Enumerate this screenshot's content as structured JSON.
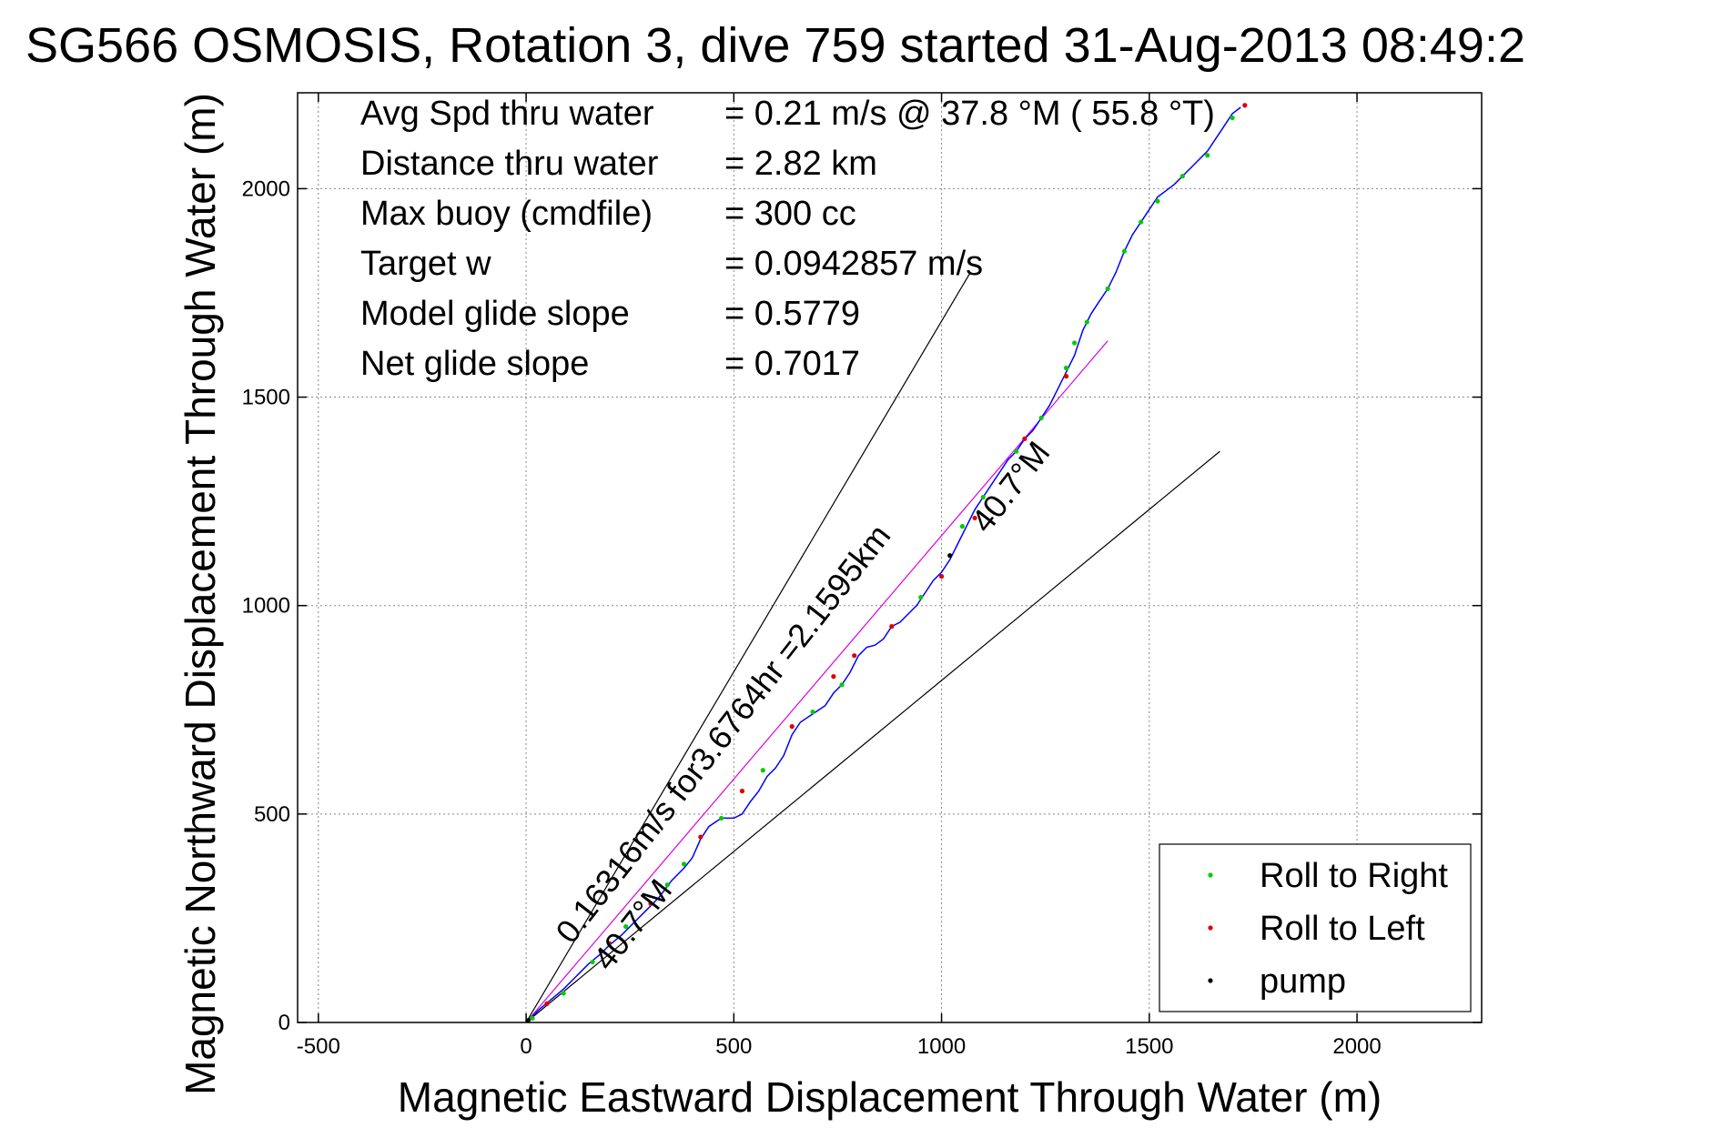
{
  "chart_data": {
    "type": "line",
    "title": "SG566 OSMOSIS, Rotation 3, dive 759 started 31-Aug-2013 08:49:2",
    "xlabel": "Magnetic Eastward Displacement Through Water (m)",
    "ylabel": "Magnetic Northward Displacement Through Water (m)",
    "xlim": [
      -550,
      2300
    ],
    "ylim": [
      0,
      2230
    ],
    "xticks": [
      -500,
      0,
      500,
      1000,
      1500,
      2000
    ],
    "yticks": [
      0,
      500,
      1000,
      1500,
      2000
    ],
    "grid": true,
    "legend_position": "bottom-right",
    "info_lines": [
      {
        "label": "Avg Spd thru water",
        "value": "=  0.21 m/s @  37.8 °M ( 55.8 °T)"
      },
      {
        "label": "Distance thru water",
        "value": "=  2.82 km"
      },
      {
        "label": "Max buoy (cmdfile)",
        "value": "= 300 cc"
      },
      {
        "label": "Target w",
        "value": "= 0.0942857 m/s"
      },
      {
        "label": "Model glide slope",
        "value": "= 0.5779"
      },
      {
        "label": "Net glide slope",
        "value": "= 0.7017"
      }
    ],
    "annotations": [
      {
        "text": "0.16316m/s for3.6764hr =2.1595km",
        "x": 110,
        "y": 185,
        "angle_deg": 52
      },
      {
        "text": "40.7°M",
        "x": 1110,
        "y": 1170,
        "angle_deg": 52
      },
      {
        "text": "40.7°M",
        "x": 200,
        "y": 120,
        "angle_deg": 52
      }
    ],
    "reference_lines": [
      {
        "name": "cone-upper",
        "color": "#000000",
        "points": [
          [
            0,
            0
          ],
          [
            1070,
            1800
          ]
        ]
      },
      {
        "name": "cone-lower",
        "color": "#000000",
        "points": [
          [
            0,
            0
          ],
          [
            1670,
            1370
          ]
        ]
      },
      {
        "name": "mean-track",
        "color": "#dd00dd",
        "points": [
          [
            0,
            0
          ],
          [
            1400,
            1635
          ]
        ]
      }
    ],
    "series": [
      {
        "type": "line",
        "color": "#0000ff",
        "points": [
          [
            0,
            0
          ],
          [
            30,
            30
          ],
          [
            60,
            55
          ],
          [
            90,
            80
          ],
          [
            120,
            110
          ],
          [
            150,
            140
          ],
          [
            180,
            165
          ],
          [
            200,
            185
          ],
          [
            230,
            210
          ],
          [
            260,
            240
          ],
          [
            290,
            270
          ],
          [
            320,
            300
          ],
          [
            350,
            340
          ],
          [
            380,
            370
          ],
          [
            400,
            395
          ],
          [
            420,
            440
          ],
          [
            440,
            470
          ],
          [
            470,
            490
          ],
          [
            500,
            490
          ],
          [
            520,
            500
          ],
          [
            540,
            530
          ],
          [
            560,
            555
          ],
          [
            580,
            590
          ],
          [
            600,
            610
          ],
          [
            620,
            640
          ],
          [
            640,
            690
          ],
          [
            660,
            720
          ],
          [
            690,
            740
          ],
          [
            720,
            760
          ],
          [
            740,
            790
          ],
          [
            760,
            810
          ],
          [
            780,
            840
          ],
          [
            800,
            880
          ],
          [
            820,
            900
          ],
          [
            840,
            905
          ],
          [
            860,
            920
          ],
          [
            880,
            950
          ],
          [
            900,
            960
          ],
          [
            920,
            980
          ],
          [
            940,
            1000
          ],
          [
            960,
            1030
          ],
          [
            980,
            1060
          ],
          [
            1000,
            1080
          ],
          [
            1020,
            1110
          ],
          [
            1040,
            1150
          ],
          [
            1060,
            1190
          ],
          [
            1080,
            1230
          ],
          [
            1100,
            1260
          ],
          [
            1120,
            1290
          ],
          [
            1140,
            1320
          ],
          [
            1160,
            1350
          ],
          [
            1180,
            1370
          ],
          [
            1200,
            1400
          ],
          [
            1220,
            1420
          ],
          [
            1240,
            1450
          ],
          [
            1260,
            1480
          ],
          [
            1280,
            1520
          ],
          [
            1300,
            1560
          ],
          [
            1320,
            1600
          ],
          [
            1340,
            1660
          ],
          [
            1360,
            1700
          ],
          [
            1380,
            1730
          ],
          [
            1400,
            1760
          ],
          [
            1420,
            1800
          ],
          [
            1440,
            1850
          ],
          [
            1460,
            1890
          ],
          [
            1480,
            1920
          ],
          [
            1500,
            1950
          ],
          [
            1520,
            1980
          ],
          [
            1560,
            2010
          ],
          [
            1600,
            2050
          ],
          [
            1640,
            2090
          ],
          [
            1680,
            2150
          ],
          [
            1700,
            2180
          ],
          [
            1720,
            2195
          ]
        ]
      },
      {
        "name": "Roll to Right",
        "type": "scatter",
        "color": "#00cc00",
        "points": [
          [
            15,
            10
          ],
          [
            90,
            70
          ],
          [
            160,
            145
          ],
          [
            240,
            230
          ],
          [
            340,
            330
          ],
          [
            380,
            380
          ],
          [
            470,
            490
          ],
          [
            570,
            605
          ],
          [
            690,
            745
          ],
          [
            760,
            810
          ],
          [
            950,
            1020
          ],
          [
            1050,
            1190
          ],
          [
            1100,
            1260
          ],
          [
            1180,
            1370
          ],
          [
            1240,
            1450
          ],
          [
            1300,
            1570
          ],
          [
            1320,
            1630
          ],
          [
            1350,
            1680
          ],
          [
            1400,
            1760
          ],
          [
            1440,
            1850
          ],
          [
            1480,
            1920
          ],
          [
            1520,
            1970
          ],
          [
            1580,
            2030
          ],
          [
            1640,
            2080
          ],
          [
            1700,
            2170
          ]
        ]
      },
      {
        "name": "Roll to Left",
        "type": "scatter",
        "color": "#dd0000",
        "points": [
          [
            50,
            45
          ],
          [
            200,
            190
          ],
          [
            300,
            285
          ],
          [
            420,
            445
          ],
          [
            520,
            555
          ],
          [
            640,
            710
          ],
          [
            740,
            830
          ],
          [
            790,
            880
          ],
          [
            880,
            950
          ],
          [
            1000,
            1070
          ],
          [
            1080,
            1210
          ],
          [
            1200,
            1400
          ],
          [
            1300,
            1550
          ],
          [
            1730,
            2200
          ]
        ]
      },
      {
        "name": "pump",
        "type": "scatter",
        "color": "#000000",
        "points": [
          [
            5,
            5
          ],
          [
            1020,
            1120
          ]
        ]
      }
    ]
  }
}
